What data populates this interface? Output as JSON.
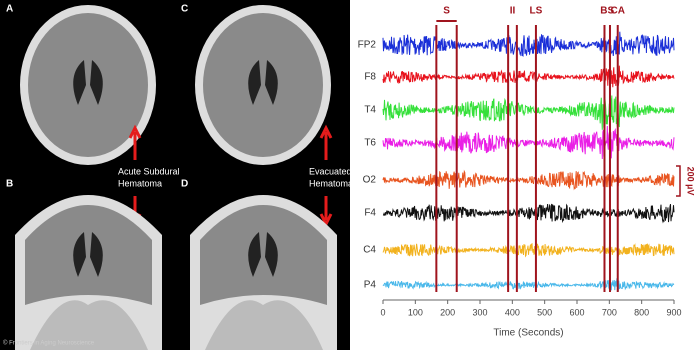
{
  "ct_panels": [
    {
      "label": "A",
      "annotation": [
        "Acute Subdural",
        "Hematoma"
      ]
    },
    {
      "label": "B"
    },
    {
      "label": "C",
      "annotation": [
        "Evacuated",
        "Hematoma"
      ]
    },
    {
      "label": "D"
    }
  ],
  "credit": "© Frontiers in Aging Neuroscience",
  "eeg": {
    "channels": [
      {
        "name": "FP2",
        "color": "#1a2fd8"
      },
      {
        "name": "F8",
        "color": "#e8121c"
      },
      {
        "name": "T4",
        "color": "#35e03a"
      },
      {
        "name": "T6",
        "color": "#ea1ee6"
      },
      {
        "name": "O2",
        "color": "#e85520"
      },
      {
        "name": "F4",
        "color": "#111111"
      },
      {
        "name": "C4",
        "color": "#f2b21e"
      },
      {
        "name": "P4",
        "color": "#4ab8ea"
      }
    ],
    "events": [
      {
        "label": "S",
        "x": [
          165,
          228
        ]
      },
      {
        "label": "II",
        "x": [
          387,
          414
        ]
      },
      {
        "label": "LS",
        "x": [
          473
        ]
      },
      {
        "label": "BS",
        "x": [
          685,
          702
        ]
      },
      {
        "label": "CA",
        "x": [
          726
        ]
      }
    ],
    "event_color": "#a0141e",
    "scale_label": "200 µV",
    "xlim": [
      0,
      900
    ],
    "xticks": [
      0,
      100,
      200,
      300,
      400,
      500,
      600,
      700,
      800,
      900
    ],
    "xlabel": "Time (Seconds)"
  }
}
